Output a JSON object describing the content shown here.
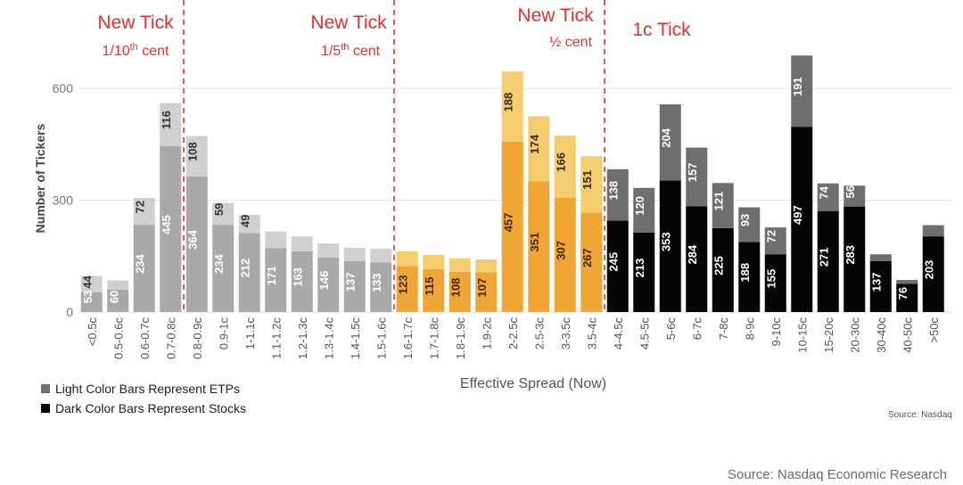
{
  "chart_data": {
    "type": "bar",
    "stacked": true,
    "xlabel": "Effective Spread (Now)",
    "ylabel": "Number of Tickers",
    "ylim": [
      0,
      660
    ],
    "yticks": [
      0,
      300,
      600
    ],
    "categories": [
      "<0.5c",
      "0.5-0.6c",
      "0.6-0.7c",
      "0.7-0.8c",
      "0.8-0.9c",
      "0.9-1c",
      "1-1.1c",
      "1.1-1.2c",
      "1.2-1.3c",
      "1.3-1.4c",
      "1.4-1.5c",
      "1.5-1.6c",
      "1.6-1.7c",
      "1.7-1.8c",
      "1.8-1.9c",
      "1.9-2c",
      "2-2.5c",
      "2.5-3c",
      "3-3.5c",
      "3.5-4c",
      "4-4.5c",
      "4.5-5c",
      "5-6c",
      "6-7c",
      "7-8c",
      "8-9c",
      "9-10c",
      "10-15c",
      "15-20c",
      "20-30c",
      "30-40c",
      "40-50c",
      ">50c"
    ],
    "groups": [
      "tenth",
      "tenth",
      "tenth",
      "tenth",
      "fifth",
      "fifth",
      "fifth",
      "fifth",
      "fifth",
      "fifth",
      "fifth",
      "fifth",
      "half",
      "half",
      "half",
      "half",
      "half",
      "half",
      "half",
      "half",
      "one",
      "one",
      "one",
      "one",
      "one",
      "one",
      "one",
      "one",
      "one",
      "one",
      "one",
      "one",
      "one"
    ],
    "series": [
      {
        "name": "Dark Color Bars Represent Stocks",
        "values": [
          53,
          60,
          234,
          445,
          364,
          234,
          212,
          171,
          163,
          146,
          137,
          133,
          123,
          115,
          108,
          107,
          457,
          351,
          307,
          267,
          245,
          213,
          353,
          284,
          225,
          188,
          155,
          497,
          271,
          283,
          137,
          76,
          203
        ],
        "labels": [
          "53",
          "60",
          "234",
          "445",
          "364",
          "234",
          "212",
          "171",
          "163",
          "146",
          "137",
          "133",
          "123",
          "115",
          "108",
          "107",
          "457",
          "351",
          "307",
          "267",
          "245",
          "213",
          "353",
          "284",
          "225",
          "188",
          "155",
          "497",
          "271",
          "283",
          "137",
          "76",
          "203"
        ]
      },
      {
        "name": "Light Color Bars Represent ETPs",
        "values": [
          44,
          25,
          72,
          116,
          108,
          59,
          49,
          45,
          40,
          38,
          35,
          37,
          40,
          38,
          36,
          34,
          188,
          174,
          166,
          151,
          138,
          120,
          204,
          157,
          121,
          93,
          72,
          191,
          74,
          56,
          18,
          10,
          30
        ],
        "labels": [
          "44",
          "",
          "72",
          "116",
          "108",
          "59",
          "49",
          "",
          "",
          "",
          "",
          "",
          "",
          "",
          "",
          "",
          "188",
          "174",
          "166",
          "151",
          "138",
          "120",
          "204",
          "157",
          "121",
          "93",
          "72",
          "191",
          "74",
          "56",
          "",
          "",
          ""
        ]
      }
    ],
    "tick_regions": [
      {
        "title": "New Tick",
        "subtitle_pre": "1/10",
        "sup": "th",
        "subtitle_post": " cent"
      },
      {
        "title": "New Tick",
        "subtitle_pre": "1/5",
        "sup": "th",
        "subtitle_post": " cent"
      },
      {
        "title": "New Tick",
        "subtitle_pre": "½ cent",
        "sup": "",
        "subtitle_post": ""
      },
      {
        "title": "1c Tick",
        "subtitle_pre": "",
        "sup": "",
        "subtitle_post": ""
      }
    ],
    "colors": {
      "tenth_dark": "#a9a9a9",
      "tenth_light": "#d0d0d0",
      "fifth_dark": "#a9a9a9",
      "fifth_light": "#d0d0d0",
      "half_dark": "#f0a534",
      "half_light": "#f5cd6e",
      "one_dark": "#050505",
      "one_light": "#6e6e6e",
      "annotation": "#e8302a",
      "divider": "#e8302a"
    }
  },
  "legend": {
    "etp": "Light Color Bars Represent ETPs",
    "stocks": "Dark Color Bars Represent Stocks"
  },
  "source_small": "Source: Nasdaq",
  "source_main": "Source: Nasdaq Economic Research"
}
